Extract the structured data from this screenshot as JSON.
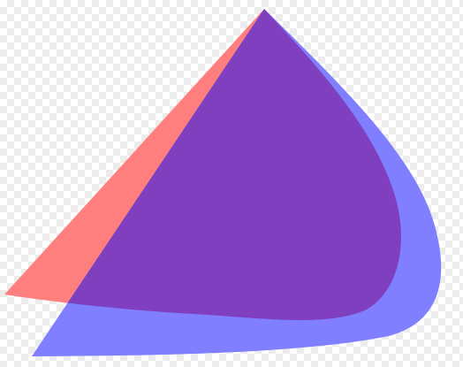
{
  "image": {
    "background": "transparent-checkerboard",
    "shapes": [
      {
        "name": "red-shape",
        "color": "#ff7f7f"
      },
      {
        "name": "blue-shape",
        "color": "#7f7fff"
      },
      {
        "name": "overlap",
        "color": "#7f3fbf"
      }
    ]
  }
}
